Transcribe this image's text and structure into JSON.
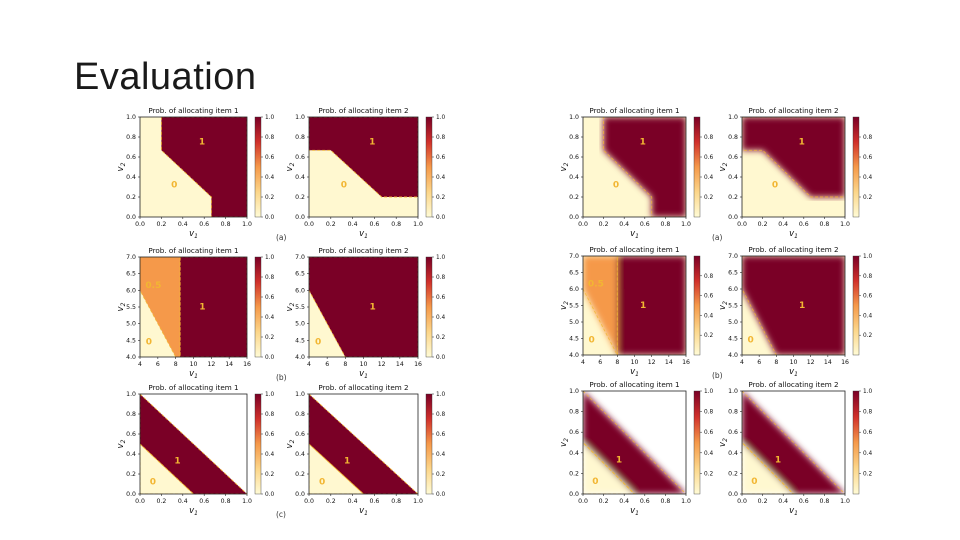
{
  "slide": {
    "title": "Evaluation"
  },
  "colors": {
    "high": "#7a0026",
    "low": "#fff8d0",
    "mid": "#f5994a",
    "boundary": "#f2b632"
  },
  "chart_data": [
    {
      "id": "L-a1",
      "type": "heatmap",
      "title": "Prob. of allocating item 1",
      "xlabel": "v1",
      "ylabel": "v2",
      "xlim": [
        0,
        1
      ],
      "ylim": [
        0,
        1
      ],
      "xticks": [
        "0.0",
        "0.2",
        "0.4",
        "0.6",
        "0.8",
        "1.0"
      ],
      "yticks": [
        "0.0",
        "0.2",
        "0.4",
        "0.6",
        "0.8",
        "1.0"
      ],
      "colorbar": {
        "range": [
          0,
          1
        ],
        "ticks": [
          "0.0",
          "0.2",
          "0.4",
          "0.6",
          "0.8",
          "1.0"
        ]
      },
      "regions": [
        {
          "label": "1",
          "value": 1,
          "polygon": [
            [
              0.2,
              1
            ],
            [
              1,
              1
            ],
            [
              1,
              0
            ],
            [
              0.667,
              0
            ],
            [
              0.667,
              0.2
            ],
            [
              0.2,
              0.667
            ]
          ]
        },
        {
          "label": "0",
          "value": 0
        }
      ],
      "label_pos": [
        {
          "text": "1",
          "x": 0.58,
          "y": 0.75
        },
        {
          "text": "0",
          "x": 0.32,
          "y": 0.32
        }
      ],
      "panel": "(a)"
    },
    {
      "id": "L-a2",
      "type": "heatmap",
      "title": "Prob. of allocating item 2",
      "xlabel": "v1",
      "ylabel": "v2",
      "xlim": [
        0,
        1
      ],
      "ylim": [
        0,
        1
      ],
      "xticks": [
        "0.0",
        "0.2",
        "0.4",
        "0.6",
        "0.8",
        "1.0"
      ],
      "yticks": [
        "0.0",
        "0.2",
        "0.4",
        "0.6",
        "0.8",
        "1.0"
      ],
      "colorbar": {
        "range": [
          0,
          1
        ],
        "ticks": [
          "0.0",
          "0.2",
          "0.4",
          "0.6",
          "0.8",
          "1.0"
        ]
      },
      "regions": [
        {
          "label": "1",
          "value": 1,
          "polygon": [
            [
              0,
              1
            ],
            [
              1,
              1
            ],
            [
              1,
              0.2
            ],
            [
              0.667,
              0.2
            ],
            [
              0.2,
              0.667
            ],
            [
              0,
              0.667
            ]
          ]
        },
        {
          "label": "0",
          "value": 0
        }
      ],
      "label_pos": [
        {
          "text": "1",
          "x": 0.58,
          "y": 0.75
        },
        {
          "text": "0",
          "x": 0.32,
          "y": 0.32
        }
      ]
    },
    {
      "id": "L-b1",
      "type": "heatmap",
      "title": "Prob. of allocating item 1",
      "xlabel": "v1",
      "ylabel": "v2",
      "xlim": [
        4,
        16
      ],
      "ylim": [
        4,
        7
      ],
      "xticks": [
        "4",
        "6",
        "8",
        "10",
        "12",
        "14",
        "16"
      ],
      "yticks": [
        "4.0",
        "4.5",
        "5.0",
        "5.5",
        "6.0",
        "6.5",
        "7.0"
      ],
      "colorbar": {
        "range": [
          0,
          1
        ],
        "ticks": [
          "0.0",
          "0.2",
          "0.4",
          "0.6",
          "0.8",
          "1.0"
        ]
      },
      "regions": [
        {
          "label": "1",
          "value": 1,
          "polygon": [
            [
              8.5,
              7
            ],
            [
              16,
              7
            ],
            [
              16,
              4
            ],
            [
              8.5,
              4
            ]
          ]
        },
        {
          "label": "0.5",
          "value": 0.5,
          "polygon": [
            [
              4,
              7
            ],
            [
              8.5,
              7
            ],
            [
              8.5,
              4
            ],
            [
              8,
              4
            ],
            [
              4,
              6
            ]
          ]
        },
        {
          "label": "0",
          "value": 0
        }
      ],
      "label_pos": [
        {
          "text": "0.5",
          "x": 5.5,
          "y": 6.15
        },
        {
          "text": "1",
          "x": 11,
          "y": 5.5
        },
        {
          "text": "0",
          "x": 5,
          "y": 4.45
        }
      ],
      "panel": "(b)"
    },
    {
      "id": "L-b2",
      "type": "heatmap",
      "title": "Prob. of allocating item 2",
      "xlabel": "v1",
      "ylabel": "v2",
      "xlim": [
        4,
        16
      ],
      "ylim": [
        4,
        7
      ],
      "xticks": [
        "4",
        "6",
        "8",
        "10",
        "12",
        "14",
        "16"
      ],
      "yticks": [
        "4.0",
        "4.5",
        "5.0",
        "5.5",
        "6.0",
        "6.5",
        "7.0"
      ],
      "colorbar": {
        "range": [
          0,
          1
        ],
        "ticks": [
          "0.0",
          "0.2",
          "0.4",
          "0.6",
          "0.8",
          "1.0"
        ]
      },
      "regions": [
        {
          "label": "1",
          "value": 1,
          "polygon": [
            [
              4,
              7
            ],
            [
              16,
              7
            ],
            [
              16,
              4
            ],
            [
              8,
              4
            ],
            [
              4,
              6
            ]
          ]
        },
        {
          "label": "0",
          "value": 0
        }
      ],
      "label_pos": [
        {
          "text": "1",
          "x": 11,
          "y": 5.5
        },
        {
          "text": "0",
          "x": 5,
          "y": 4.45
        }
      ]
    },
    {
      "id": "L-c1",
      "type": "heatmap",
      "title": "Prob. of allocating item 1",
      "xlabel": "v1",
      "ylabel": "v2",
      "xlim": [
        0,
        1
      ],
      "ylim": [
        0,
        1
      ],
      "xticks": [
        "0.0",
        "0.2",
        "0.4",
        "0.6",
        "0.8",
        "1.0"
      ],
      "yticks": [
        "0.0",
        "0.2",
        "0.4",
        "0.6",
        "0.8",
        "1.0"
      ],
      "colorbar": {
        "range": [
          0,
          1
        ],
        "ticks": [
          "0.0",
          "0.2",
          "0.4",
          "0.6",
          "0.8",
          "1.0"
        ]
      },
      "regions": [
        {
          "label": "1",
          "value": 1,
          "polygon": [
            [
              0,
              1
            ],
            [
              1,
              0
            ],
            [
              0.5,
              0
            ],
            [
              0,
              0.5
            ]
          ]
        },
        {
          "label": "0",
          "value": 0,
          "polygon": [
            [
              0,
              0
            ],
            [
              0.5,
              0
            ],
            [
              0,
              0.5
            ]
          ]
        }
      ],
      "label_pos": [
        {
          "text": "1",
          "x": 0.35,
          "y": 0.33
        },
        {
          "text": "0",
          "x": 0.12,
          "y": 0.12
        }
      ],
      "panel": "(c)"
    },
    {
      "id": "L-c2",
      "type": "heatmap",
      "title": "Prob. of allocating item 2",
      "xlabel": "v1",
      "ylabel": "v2",
      "xlim": [
        0,
        1
      ],
      "ylim": [
        0,
        1
      ],
      "xticks": [
        "0.0",
        "0.2",
        "0.4",
        "0.6",
        "0.8",
        "1.0"
      ],
      "yticks": [
        "0.0",
        "0.2",
        "0.4",
        "0.6",
        "0.8",
        "1.0"
      ],
      "colorbar": {
        "range": [
          0,
          1
        ],
        "ticks": [
          "0.0",
          "0.2",
          "0.4",
          "0.6",
          "0.8",
          "1.0"
        ]
      },
      "regions": [
        {
          "label": "1",
          "value": 1,
          "polygon": [
            [
              0,
              1
            ],
            [
              1,
              0
            ],
            [
              0.5,
              0
            ],
            [
              0,
              0.5
            ]
          ]
        },
        {
          "label": "0",
          "value": 0,
          "polygon": [
            [
              0,
              0
            ],
            [
              0.5,
              0
            ],
            [
              0,
              0.5
            ]
          ]
        }
      ],
      "label_pos": [
        {
          "text": "1",
          "x": 0.35,
          "y": 0.33
        },
        {
          "text": "0",
          "x": 0.12,
          "y": 0.12
        }
      ]
    },
    {
      "id": "R-a1",
      "type": "heatmap",
      "title": "Prob. of allocating item 1",
      "xlabel": "v1",
      "ylabel": "v2",
      "xlim": [
        0,
        1
      ],
      "ylim": [
        0,
        1
      ],
      "xticks": [
        "0.0",
        "0.2",
        "0.4",
        "0.6",
        "0.8",
        "1.0"
      ],
      "yticks": [
        "0.0",
        "0.2",
        "0.4",
        "0.6",
        "0.8",
        "1.0"
      ],
      "colorbar": {
        "range": [
          0,
          1
        ],
        "ticks": [
          "0.2",
          "0.4",
          "0.6",
          "0.8"
        ]
      },
      "regions": [
        {
          "label": "1",
          "value": 1,
          "polygon": [
            [
              0.2,
              1
            ],
            [
              1,
              1
            ],
            [
              1,
              0
            ],
            [
              0.667,
              0
            ],
            [
              0.667,
              0.2
            ],
            [
              0.2,
              0.667
            ]
          ]
        },
        {
          "label": "0",
          "value": 0
        }
      ],
      "label_pos": [
        {
          "text": "1",
          "x": 0.58,
          "y": 0.75
        },
        {
          "text": "0",
          "x": 0.32,
          "y": 0.32
        }
      ],
      "panel": "(a)"
    },
    {
      "id": "R-a2",
      "type": "heatmap",
      "title": "Prob. of allocating item 2",
      "xlabel": "v1",
      "ylabel": "v2",
      "xlim": [
        0,
        1
      ],
      "ylim": [
        0,
        1
      ],
      "xticks": [
        "0.0",
        "0.2",
        "0.4",
        "0.6",
        "0.8",
        "1.0"
      ],
      "yticks": [
        "0.0",
        "0.2",
        "0.4",
        "0.6",
        "0.8",
        "1.0"
      ],
      "colorbar": {
        "range": [
          0,
          1
        ],
        "ticks": [
          "0.2",
          "0.4",
          "0.6",
          "0.8"
        ]
      },
      "regions": [
        {
          "label": "1",
          "value": 1,
          "polygon": [
            [
              0,
              1
            ],
            [
              1,
              1
            ],
            [
              1,
              0.2
            ],
            [
              0.667,
              0.2
            ],
            [
              0.2,
              0.667
            ],
            [
              0,
              0.667
            ]
          ]
        },
        {
          "label": "0",
          "value": 0
        }
      ],
      "label_pos": [
        {
          "text": "1",
          "x": 0.58,
          "y": 0.75
        },
        {
          "text": "0",
          "x": 0.32,
          "y": 0.32
        }
      ]
    },
    {
      "id": "R-b1",
      "type": "heatmap",
      "title": "Prob. of allocating item 1",
      "xlabel": "v1",
      "ylabel": "v2",
      "xlim": [
        4,
        16
      ],
      "ylim": [
        4,
        7
      ],
      "xticks": [
        "4",
        "6",
        "8",
        "10",
        "12",
        "14",
        "16"
      ],
      "yticks": [
        "4.0",
        "4.5",
        "5.0",
        "5.5",
        "6.0",
        "6.5",
        "7.0"
      ],
      "colorbar": {
        "range": [
          0,
          1
        ],
        "ticks": [
          "0.2",
          "0.4",
          "0.6",
          "0.8"
        ]
      },
      "regions": [
        {
          "label": "1",
          "value": 1,
          "polygon": [
            [
              8,
              7
            ],
            [
              16,
              7
            ],
            [
              16,
              4
            ],
            [
              8,
              4
            ]
          ]
        },
        {
          "label": "0.5",
          "value": 0.5,
          "polygon": [
            [
              4,
              7
            ],
            [
              8,
              7
            ],
            [
              8,
              4
            ],
            [
              4,
              6
            ]
          ]
        },
        {
          "label": "0",
          "value": 0
        }
      ],
      "label_pos": [
        {
          "text": "0.5",
          "x": 5.5,
          "y": 6.15
        },
        {
          "text": "1",
          "x": 11,
          "y": 5.5
        },
        {
          "text": "0",
          "x": 5,
          "y": 4.45
        }
      ],
      "panel": "(b)"
    },
    {
      "id": "R-b2",
      "type": "heatmap",
      "title": "Prob. of allocating item 2",
      "xlabel": "v1",
      "ylabel": "v2",
      "xlim": [
        4,
        16
      ],
      "ylim": [
        4,
        7
      ],
      "xticks": [
        "4",
        "6",
        "8",
        "10",
        "12",
        "14",
        "16"
      ],
      "yticks": [
        "4.0",
        "4.5",
        "5.0",
        "5.5",
        "6.0",
        "6.5",
        "7.0"
      ],
      "colorbar": {
        "range": [
          0,
          1
        ],
        "ticks": [
          "0.2",
          "0.4",
          "0.6",
          "0.8",
          "1.0"
        ]
      },
      "regions": [
        {
          "label": "1",
          "value": 1,
          "polygon": [
            [
              4,
              7
            ],
            [
              16,
              7
            ],
            [
              16,
              4
            ],
            [
              8,
              4
            ],
            [
              4,
              6
            ]
          ]
        },
        {
          "label": "0",
          "value": 0
        }
      ],
      "label_pos": [
        {
          "text": "1",
          "x": 11,
          "y": 5.5
        },
        {
          "text": "0",
          "x": 5,
          "y": 4.45
        }
      ]
    },
    {
      "id": "R-c1",
      "type": "heatmap",
      "title": "Prob. of allocating item 1",
      "xlabel": "v1",
      "ylabel": "v2",
      "xlim": [
        0,
        1
      ],
      "ylim": [
        0,
        1
      ],
      "xticks": [
        "0.0",
        "0.2",
        "0.4",
        "0.6",
        "0.8",
        "1.0"
      ],
      "yticks": [
        "0.0",
        "0.2",
        "0.4",
        "0.6",
        "0.8",
        "1.0"
      ],
      "colorbar": {
        "range": [
          0,
          1
        ],
        "ticks": [
          "0.2",
          "0.4",
          "0.6",
          "0.8",
          "1.0"
        ]
      },
      "regions": [
        {
          "label": "1",
          "value": 1,
          "polygon": [
            [
              0,
              1
            ],
            [
              1,
              0
            ],
            [
              0.5,
              0
            ],
            [
              0,
              0.5
            ]
          ]
        },
        {
          "label": "0",
          "value": 0,
          "polygon": [
            [
              0,
              0
            ],
            [
              0.5,
              0
            ],
            [
              0,
              0.5
            ]
          ]
        }
      ],
      "label_pos": [
        {
          "text": "1",
          "x": 0.35,
          "y": 0.33
        },
        {
          "text": "0",
          "x": 0.12,
          "y": 0.12
        }
      ]
    },
    {
      "id": "R-c2",
      "type": "heatmap",
      "title": "Prob. of allocating item 2",
      "xlabel": "v1",
      "ylabel": "v2",
      "xlim": [
        0,
        1
      ],
      "ylim": [
        0,
        1
      ],
      "xticks": [
        "0.0",
        "0.2",
        "0.4",
        "0.6",
        "0.8",
        "1.0"
      ],
      "yticks": [
        "0.0",
        "0.2",
        "0.4",
        "0.6",
        "0.8",
        "1.0"
      ],
      "colorbar": {
        "range": [
          0,
          1
        ],
        "ticks": [
          "0.2",
          "0.4",
          "0.6",
          "0.8",
          "1.0"
        ]
      },
      "regions": [
        {
          "label": "1",
          "value": 1,
          "polygon": [
            [
              0,
              1
            ],
            [
              1,
              0
            ],
            [
              0.5,
              0
            ],
            [
              0,
              0.5
            ]
          ]
        },
        {
          "label": "0",
          "value": 0,
          "polygon": [
            [
              0,
              0
            ],
            [
              0.5,
              0
            ],
            [
              0,
              0.5
            ]
          ]
        }
      ],
      "label_pos": [
        {
          "text": "1",
          "x": 0.35,
          "y": 0.33
        },
        {
          "text": "0",
          "x": 0.12,
          "y": 0.12
        }
      ]
    }
  ]
}
